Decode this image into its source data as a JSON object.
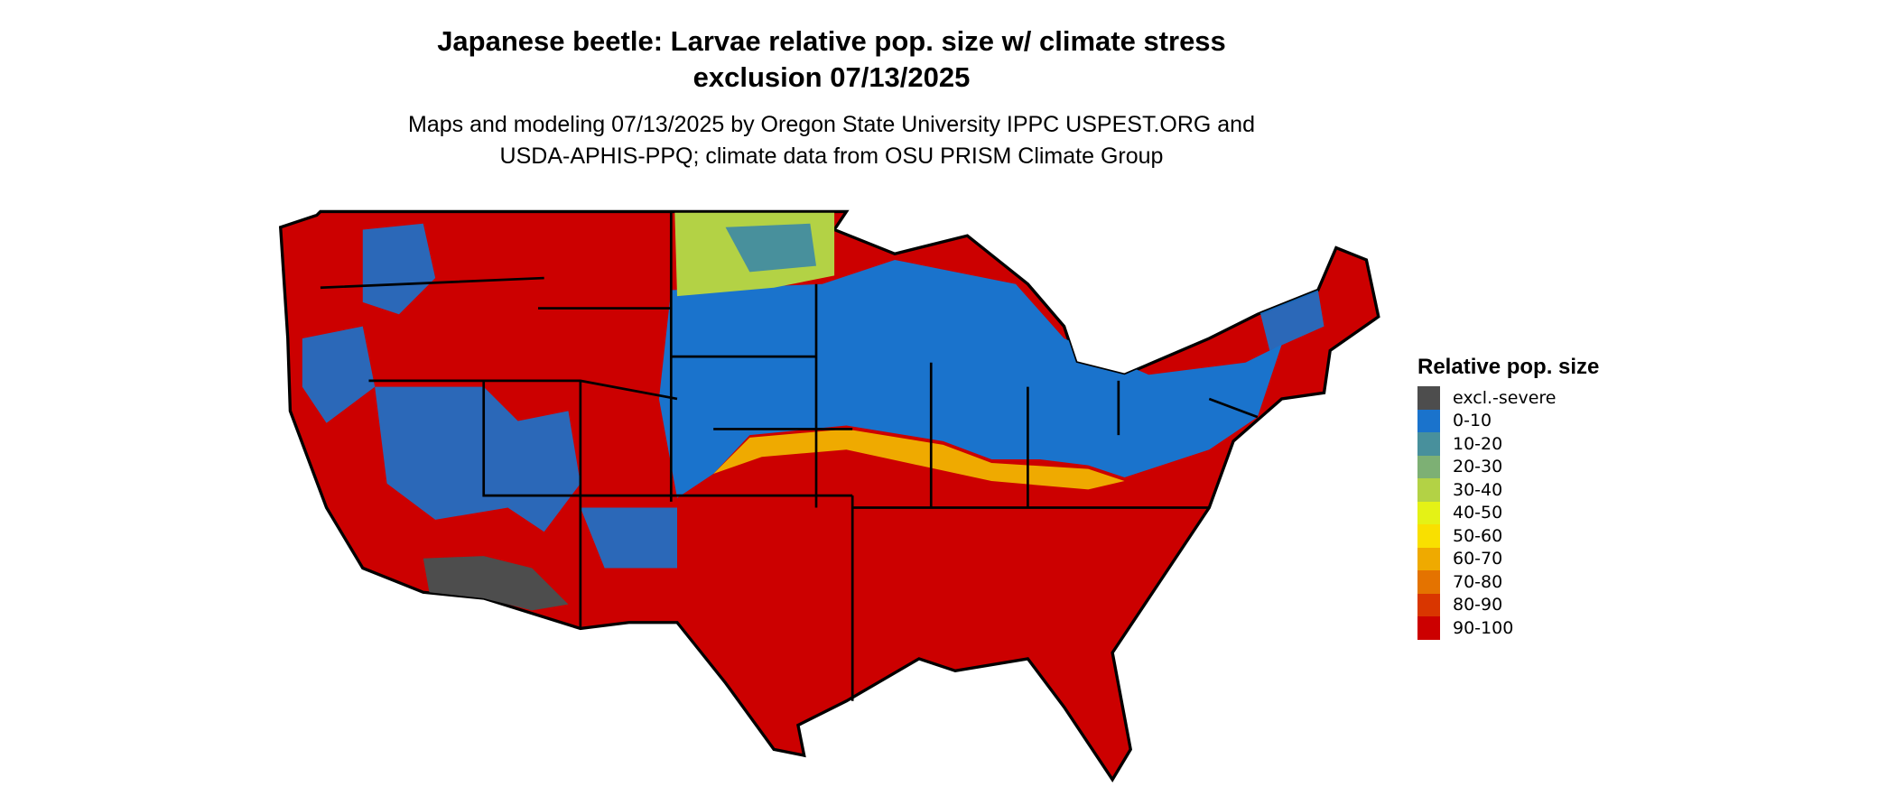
{
  "title_line1": "Japanese beetle: Larvae relative pop. size w/ climate stress",
  "title_line2": "exclusion 07/13/2025",
  "subtitle_line1": "Maps and modeling 07/13/2025 by Oregon State University IPPC USPEST.ORG and",
  "subtitle_line2": "USDA-APHIS-PPQ; climate data from OSU PRISM Climate Group",
  "map": {
    "region": "Contiguous United States",
    "boundaries": "state outlines",
    "dominant_class": "90-100"
  },
  "legend": {
    "title": "Relative pop. size",
    "items": [
      {
        "label": "excl.-severe",
        "color": "#4d4d4d"
      },
      {
        "label": "0-10",
        "color": "#1a73cc"
      },
      {
        "label": "10-20",
        "color": "#48909c"
      },
      {
        "label": "20-30",
        "color": "#7db074"
      },
      {
        "label": "30-40",
        "color": "#b3d245"
      },
      {
        "label": "40-50",
        "color": "#e4f216"
      },
      {
        "label": "50-60",
        "color": "#f9e000"
      },
      {
        "label": "60-70",
        "color": "#efaa00"
      },
      {
        "label": "70-80",
        "color": "#e47300"
      },
      {
        "label": "80-90",
        "color": "#d93600"
      },
      {
        "label": "90-100",
        "color": "#cc0000"
      }
    ]
  }
}
